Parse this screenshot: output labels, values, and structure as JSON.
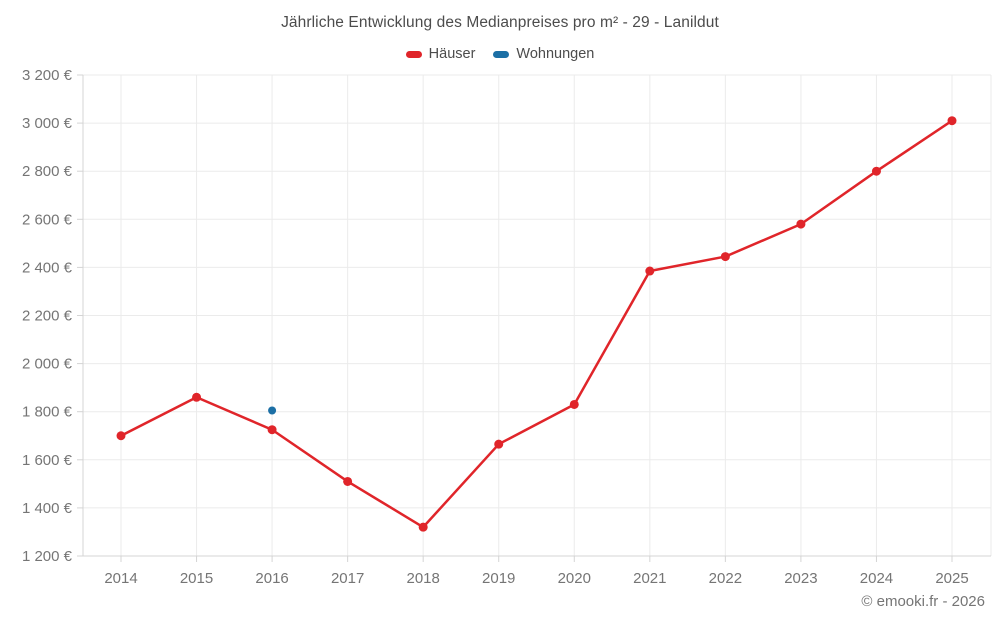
{
  "title": "Jährliche Entwicklung des Medianpreises pro m² - 29 - Lanildut",
  "footer": "© emooki.fr - 2026",
  "legend": {
    "items": [
      {
        "label": "Häuser",
        "color": "#e0252a"
      },
      {
        "label": "Wohnungen",
        "color": "#1c6fa5"
      }
    ]
  },
  "chart_data": {
    "type": "line",
    "title": "Jährliche Entwicklung des Medianpreises pro m² - 29 - Lanildut",
    "x": [
      2014,
      2015,
      2016,
      2017,
      2018,
      2019,
      2020,
      2021,
      2022,
      2023,
      2024,
      2025
    ],
    "series": [
      {
        "name": "Häuser",
        "color": "#e0252a",
        "point_radius": 4.5,
        "values": [
          1700,
          1860,
          1725,
          1510,
          1320,
          1665,
          1830,
          2385,
          2445,
          2580,
          2800,
          3010
        ]
      },
      {
        "name": "Wohnungen",
        "color": "#1c6fa5",
        "point_radius": 4,
        "values": [
          null,
          null,
          1805,
          null,
          null,
          null,
          null,
          null,
          null,
          null,
          null,
          null
        ]
      }
    ],
    "xlabel": "",
    "ylabel": "",
    "ylim": [
      1200,
      3200
    ],
    "ytick_step": 200,
    "ytick_suffix": " €",
    "grid": true,
    "legend_position": "top"
  },
  "style": {
    "background": "#ffffff",
    "grid_color": "#ebebeb",
    "axis_color": "#d4d4d4",
    "tick_color": "#d4d4d4",
    "label_color": "#757575",
    "title_color": "#4c4c4c"
  }
}
